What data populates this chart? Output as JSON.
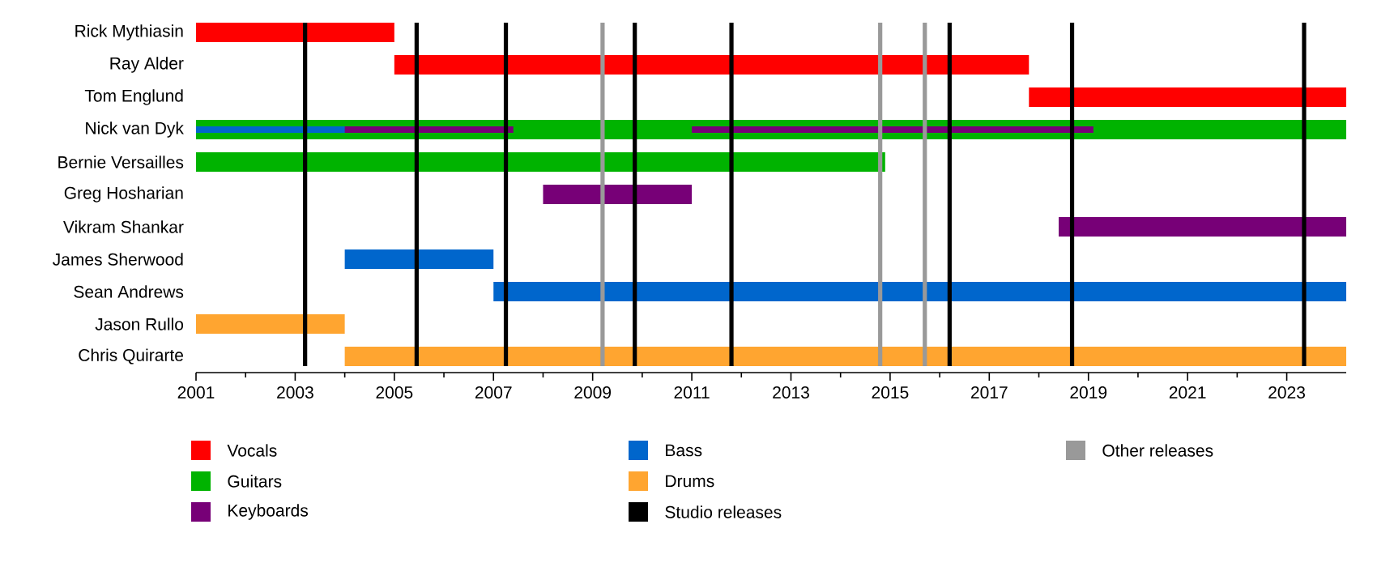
{
  "chart_data": {
    "type": "bar",
    "orientation": "horizontal",
    "legend": "bottom",
    "categories": [
      "Rick Mythiasin",
      "Ray Alder",
      "Tom Englund",
      "Nick van Dyk",
      "Bernie Versailles",
      "Greg Hosharian",
      "Vikram Shankar",
      "James Sherwood",
      "Sean Andrews",
      "Jason Rullo",
      "Chris Quirarte"
    ],
    "series": [
      {
        "name": "Vocals",
        "color": "#ff0000",
        "base": [
          2001,
          2005.0,
          2017.8,
          null,
          null,
          null,
          null,
          null,
          null,
          null,
          null
        ],
        "values": [
          4.0,
          12.8,
          6.4,
          null,
          null,
          null,
          null,
          null,
          null,
          null,
          null
        ]
      },
      {
        "name": "Guitars",
        "color": "#00b300",
        "base": [
          null,
          null,
          null,
          2001,
          2001,
          null,
          null,
          null,
          null,
          null,
          null
        ],
        "values": [
          null,
          null,
          null,
          23.2,
          13.9,
          null,
          null,
          null,
          null,
          null,
          null
        ]
      },
      {
        "name": "Keyboards",
        "color": "#770077",
        "base": [
          null,
          null,
          null,
          2001,
          null,
          2008,
          2018.4,
          null,
          null,
          null,
          null
        ],
        "values": [
          null,
          null,
          null,
          6.4,
          null,
          3.0,
          5.8,
          null,
          null,
          null,
          null
        ]
      },
      {
        "color": "#770077",
        "base": [
          null,
          null,
          null,
          2011,
          null,
          null,
          null,
          null,
          null,
          null,
          null
        ],
        "values": [
          null,
          null,
          null,
          8.1,
          null,
          null,
          null,
          null,
          null,
          null,
          null
        ]
      },
      {
        "name": "Bass",
        "color": "#0066cc",
        "base": [
          null,
          null,
          null,
          2001,
          null,
          null,
          null,
          2004,
          2007,
          null,
          null
        ],
        "values": [
          null,
          null,
          null,
          3.0,
          null,
          null,
          null,
          3.0,
          17.2,
          null,
          null
        ]
      },
      {
        "name": "Drums",
        "color": "#ffa530",
        "base": [
          null,
          null,
          null,
          null,
          null,
          null,
          null,
          null,
          null,
          2001,
          2004
        ],
        "values": [
          null,
          null,
          null,
          null,
          null,
          null,
          null,
          null,
          null,
          3.0,
          20.2
        ]
      }
    ],
    "xlim": [
      2001,
      2024.2
    ],
    "xticks": [
      2001,
      2003,
      2005,
      2007,
      2009,
      2011,
      2013,
      2015,
      2017,
      2019,
      2021,
      2023
    ],
    "ref_lines": [
      {
        "axis": "x",
        "value": 2003.2,
        "color": "#000000",
        "label": "Studio releases"
      },
      {
        "axis": "x",
        "value": 2005.45,
        "color": "#000000"
      },
      {
        "axis": "x",
        "value": 2007.25,
        "color": "#000000"
      },
      {
        "axis": "x",
        "value": 2009.2,
        "color": "#999999",
        "label": "Other releases"
      },
      {
        "axis": "x",
        "value": 2009.85,
        "color": "#000000"
      },
      {
        "axis": "x",
        "value": 2011.8,
        "color": "#000000"
      },
      {
        "axis": "x",
        "value": 2014.8,
        "color": "#999999"
      },
      {
        "axis": "x",
        "value": 2015.7,
        "color": "#999999"
      },
      {
        "axis": "x",
        "value": 2016.2,
        "color": "#000000"
      },
      {
        "axis": "x",
        "value": 2018.67,
        "color": "#000000"
      },
      {
        "axis": "x",
        "value": 2023.35,
        "color": "#000000"
      }
    ]
  }
}
